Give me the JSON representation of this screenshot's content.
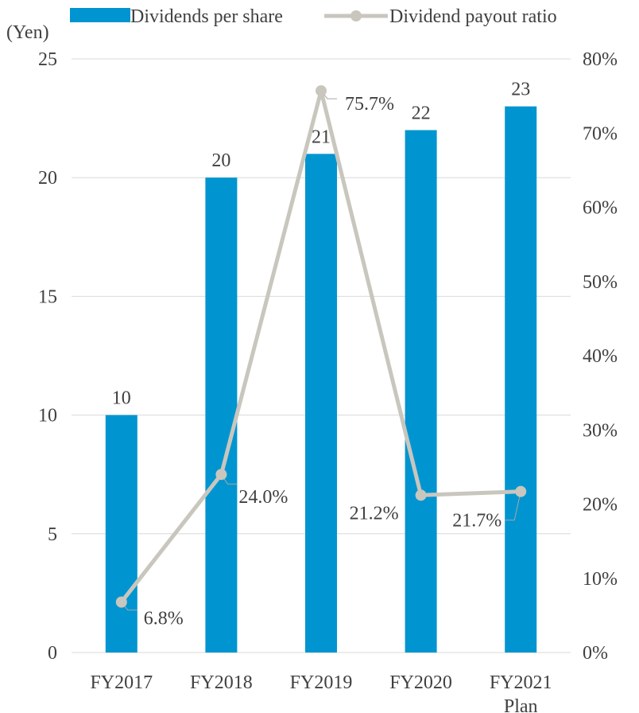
{
  "chart_data": {
    "type": "bar",
    "categories": [
      "FY2017",
      "FY2018",
      "FY2019",
      "FY2020",
      "FY2021\nPlan"
    ],
    "series": [
      {
        "name": "Dividends per share",
        "type": "bar",
        "axis": "left",
        "values": [
          10,
          20,
          21,
          22,
          23
        ],
        "labels": [
          "10",
          "20",
          "21",
          "22",
          "23"
        ],
        "color": "#0095D0"
      },
      {
        "name": "Dividend payout ratio",
        "type": "line",
        "axis": "right",
        "values": [
          6.8,
          24.0,
          75.7,
          21.2,
          21.7
        ],
        "labels": [
          "6.8%",
          "24.0%",
          "75.7%",
          "21.2%",
          "21.7%"
        ],
        "color": "#C9C6BE"
      }
    ],
    "y_left": {
      "unit_label": "(Yen)",
      "min": 0,
      "max": 25,
      "ticks": [
        "0",
        "5",
        "10",
        "15",
        "20",
        "25"
      ]
    },
    "y_right": {
      "min": 0,
      "max": 80,
      "ticks": [
        "0%",
        "10%",
        "20%",
        "30%",
        "40%",
        "50%",
        "60%",
        "70%",
        "80%"
      ]
    },
    "grid": true,
    "legend_position": "top"
  }
}
